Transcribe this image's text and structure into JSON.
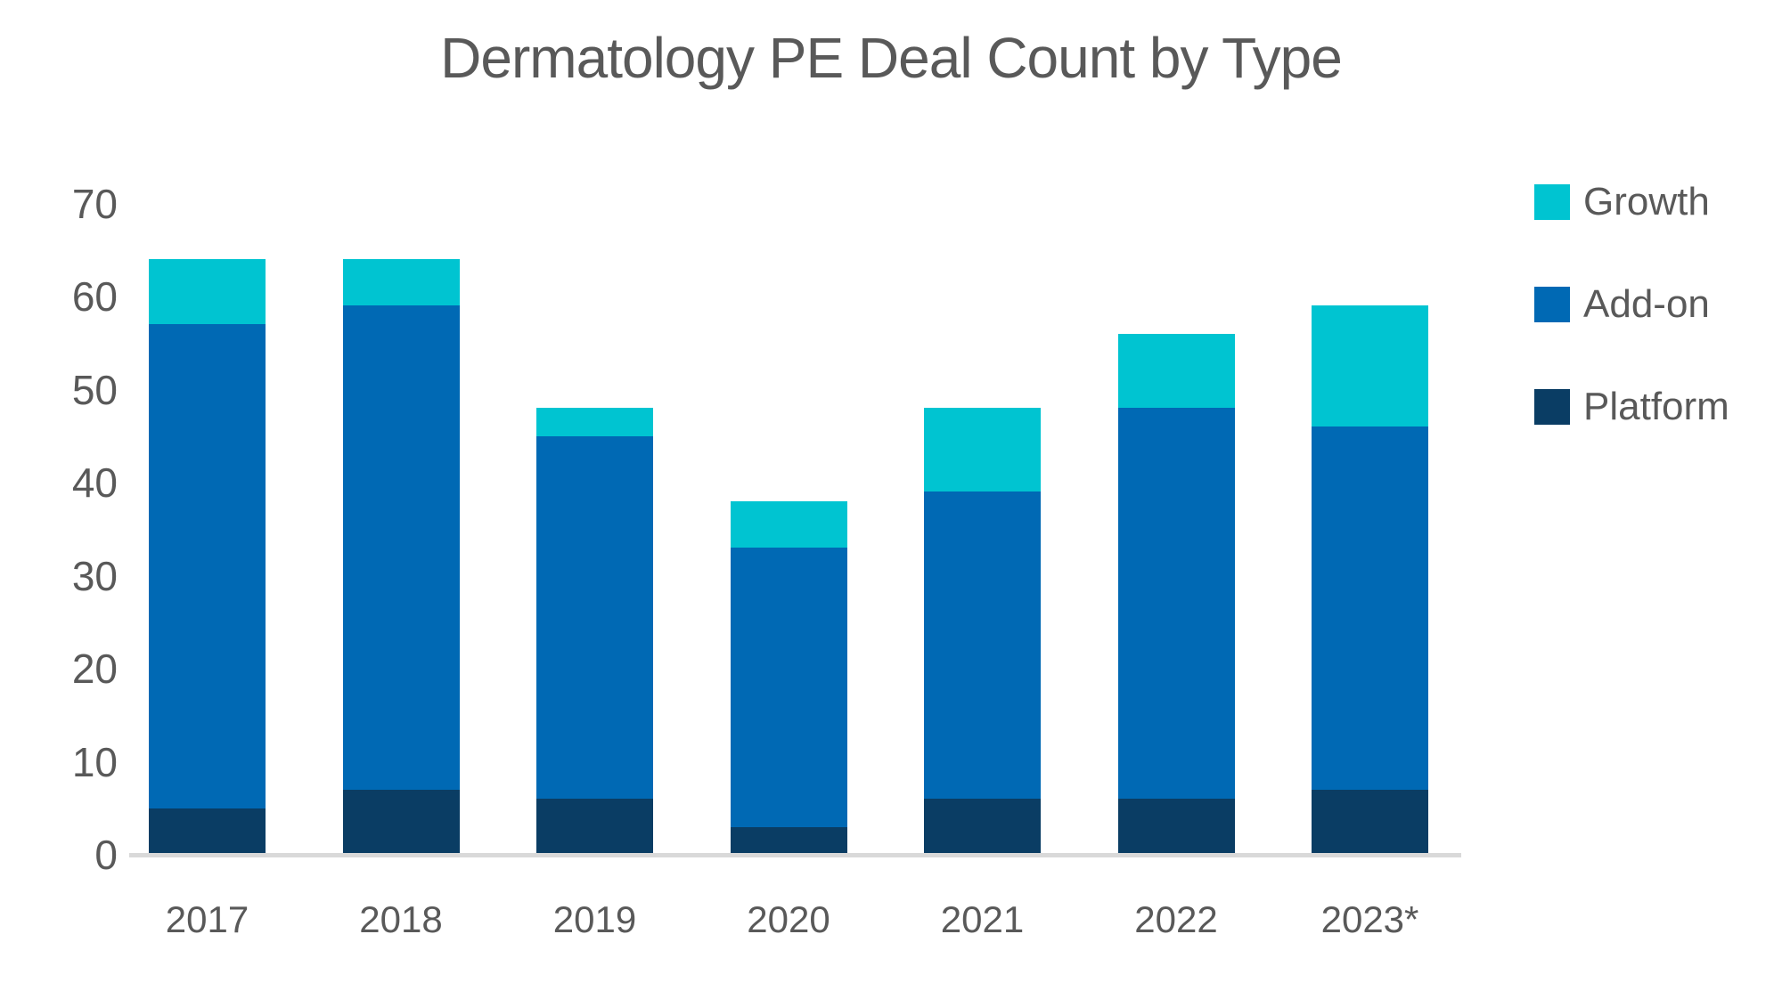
{
  "chart_data": {
    "type": "bar",
    "stacked": true,
    "title": "Dermatology PE Deal Count by Type",
    "categories": [
      "2017",
      "2018",
      "2019",
      "2020",
      "2021",
      "2022",
      "2023*"
    ],
    "series": [
      {
        "name": "Platform",
        "color": "#0A3D64",
        "values": [
          5,
          7,
          6,
          3,
          6,
          6,
          7
        ]
      },
      {
        "name": "Add-on",
        "color": "#0069B4",
        "values": [
          52,
          52,
          39,
          30,
          33,
          42,
          39
        ]
      },
      {
        "name": "Growth",
        "color": "#00C4D1",
        "values": [
          7,
          5,
          3,
          5,
          9,
          8,
          13
        ]
      }
    ],
    "totals": [
      64,
      64,
      48,
      38,
      48,
      56,
      59
    ],
    "xlabel": "",
    "ylabel": "",
    "ylim": [
      0,
      70
    ],
    "grid": false,
    "legend_position": "right"
  },
  "y_axis": {
    "ticks": [
      70,
      60,
      50,
      40,
      30,
      20,
      10,
      0
    ]
  },
  "legend": {
    "items": [
      {
        "label": "Growth",
        "color": "#00C4D1"
      },
      {
        "label": "Add-on",
        "color": "#0069B4"
      },
      {
        "label": "Platform",
        "color": "#0A3D64"
      }
    ]
  },
  "colors": {
    "growth": "#00C4D1",
    "addon": "#0069B4",
    "platform": "#0A3D64",
    "axis_line": "#D9D9D9",
    "text": "#595959",
    "background": "#FFFFFF"
  }
}
